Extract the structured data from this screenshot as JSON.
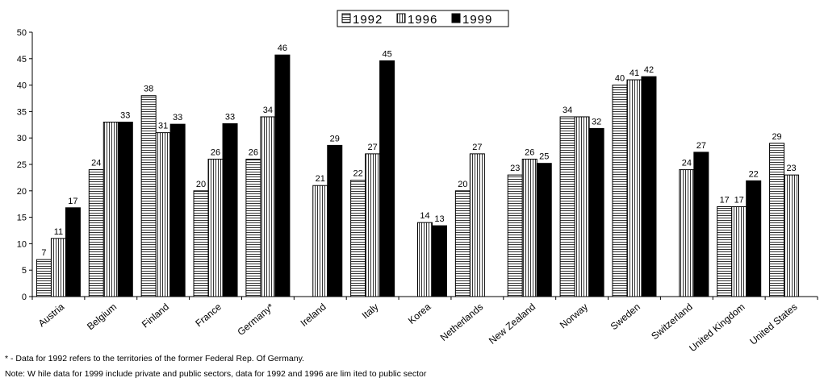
{
  "chart_data": {
    "type": "bar",
    "title": "",
    "xlabel": "",
    "ylabel": "",
    "ylim": [
      0,
      50
    ],
    "yticks": [
      0,
      5,
      10,
      15,
      20,
      25,
      30,
      35,
      40,
      45,
      50
    ],
    "grid": false,
    "legend_position": "top-center",
    "categories": [
      "Austria",
      "Belgium",
      "Finland",
      "France",
      "Germany*",
      "Ireland",
      "Italy",
      "Korea",
      "Netherlands",
      "New Zealand",
      "Norway",
      "Sweden",
      "Switzerland",
      "United Kingdom",
      "United States"
    ],
    "series": [
      {
        "name": "1992",
        "pattern": "horizontal-lines",
        "values": [
          7,
          24,
          38,
          20,
          26,
          null,
          22,
          null,
          20,
          23,
          34,
          40,
          null,
          17,
          29
        ],
        "labels": [
          "7",
          "24",
          "38",
          "20",
          "26",
          null,
          "22",
          null,
          "20",
          "23",
          "34",
          "40",
          null,
          "17",
          "29"
        ]
      },
      {
        "name": "1996",
        "pattern": "vertical-lines",
        "values": [
          11,
          33,
          31,
          26,
          34,
          21,
          27,
          14,
          27,
          26,
          34,
          41,
          24,
          17,
          23
        ],
        "labels": [
          "11",
          null,
          "31",
          "26",
          "34",
          "21",
          "27",
          "14",
          "27",
          "26",
          null,
          "41",
          "24",
          "17",
          "23"
        ]
      },
      {
        "name": "1999",
        "pattern": "solid-black",
        "values": [
          16.8,
          33,
          32.6,
          32.7,
          45.7,
          28.6,
          44.6,
          13.4,
          null,
          25.2,
          31.8,
          41.6,
          27.3,
          21.9,
          null
        ],
        "labels": [
          "17",
          "33",
          "33",
          "33",
          "46",
          "29",
          "45",
          "13",
          null,
          "25",
          "32",
          "42",
          "27",
          "22",
          null
        ]
      }
    ]
  },
  "footnotes": {
    "note1": "* - Data for 1992 refers to the territories of the former Federal Rep. Of Germany.",
    "note2": "Note: W hile data for 1999 include private and public sectors, data for 1992 and 1996 are lim ited to public sector"
  }
}
